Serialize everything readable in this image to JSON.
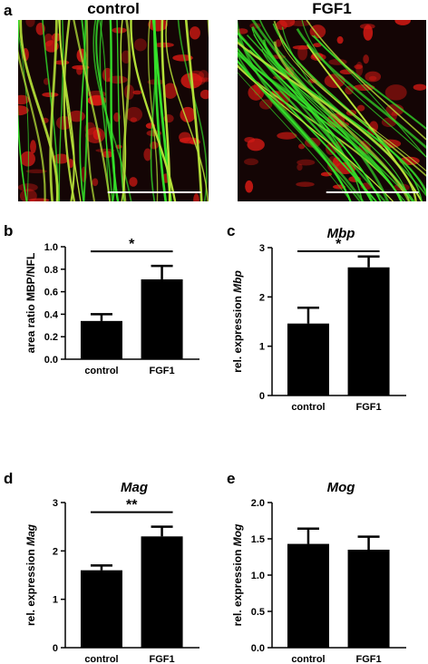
{
  "panels": {
    "a": {
      "letter": "a",
      "left_title": "control",
      "right_title": "FGF1"
    },
    "b": {
      "letter": "b"
    },
    "c": {
      "letter": "c"
    },
    "d": {
      "letter": "d"
    },
    "e": {
      "letter": "e"
    }
  },
  "colors": {
    "bar": "#000000",
    "green_fiber": "#35e12a",
    "red_stain": "#d81a14",
    "background": "#ffffff"
  },
  "chart_data": [
    {
      "id": "b",
      "type": "bar",
      "title": "",
      "categories": [
        "control",
        "FGF1"
      ],
      "values": [
        0.34,
        0.71
      ],
      "errors": [
        0.06,
        0.12
      ],
      "ylabel": "area ratio MBP/NFL",
      "ylim": [
        0.0,
        1.0
      ],
      "yticks": [
        "0.0",
        "0.2",
        "0.4",
        "0.6",
        "0.8",
        "1.0"
      ],
      "ytick_values": [
        0,
        0.2,
        0.4,
        0.6,
        0.8,
        1.0
      ],
      "significance": "*",
      "grid": false
    },
    {
      "id": "c",
      "type": "bar",
      "title": "Mbp",
      "categories": [
        "control",
        "FGF1"
      ],
      "values": [
        1.46,
        2.6
      ],
      "errors": [
        0.32,
        0.22
      ],
      "ylabel": "rel. expression Mbp",
      "ylim": [
        0,
        3
      ],
      "yticks": [
        "0",
        "1",
        "2",
        "3"
      ],
      "ytick_values": [
        0,
        1,
        2,
        3
      ],
      "significance": "*",
      "grid": false
    },
    {
      "id": "d",
      "type": "bar",
      "title": "Mag",
      "categories": [
        "control",
        "FGF1"
      ],
      "values": [
        1.6,
        2.3
      ],
      "errors": [
        0.1,
        0.2
      ],
      "ylabel": "rel. expression Mag",
      "ylim": [
        0,
        3
      ],
      "yticks": [
        "0",
        "1",
        "2",
        "3"
      ],
      "ytick_values": [
        0,
        1,
        2,
        3
      ],
      "significance": "**",
      "grid": false
    },
    {
      "id": "e",
      "type": "bar",
      "title": "Mog",
      "categories": [
        "control",
        "FGF1"
      ],
      "values": [
        1.43,
        1.35
      ],
      "errors": [
        0.21,
        0.18
      ],
      "ylabel": "rel. expression Mog",
      "ylim": [
        0.0,
        2.0
      ],
      "yticks": [
        "0.0",
        "0.5",
        "1.0",
        "1.5",
        "2.0"
      ],
      "ytick_values": [
        0,
        0.5,
        1.0,
        1.5,
        2.0
      ],
      "significance": "",
      "grid": false
    }
  ]
}
